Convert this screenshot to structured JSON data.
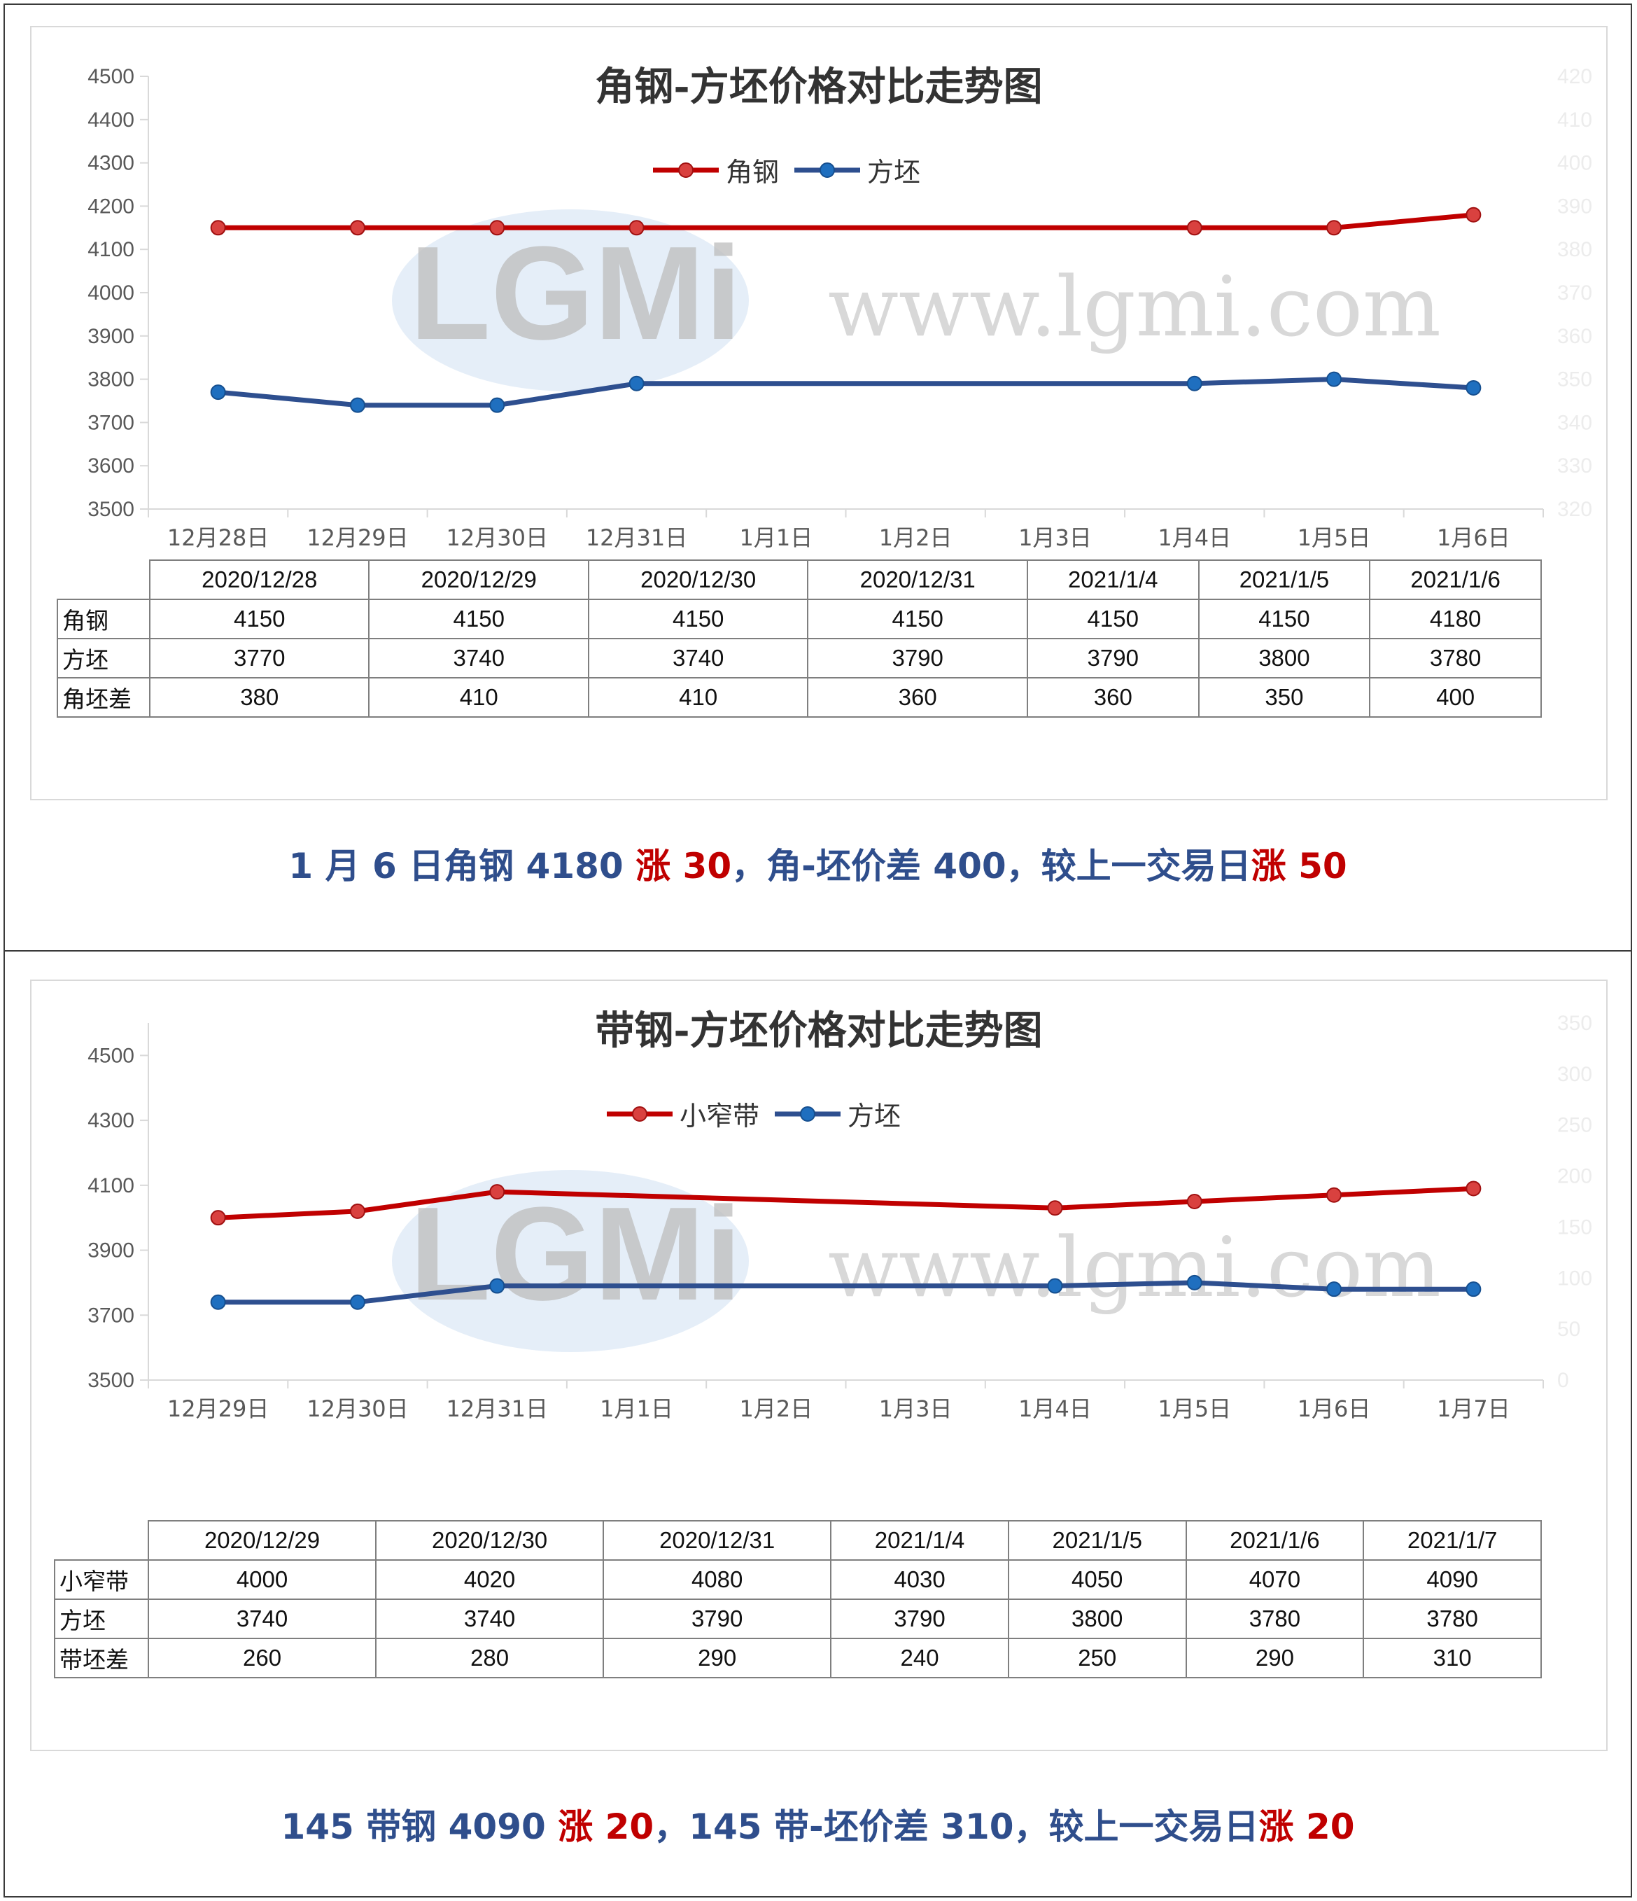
{
  "colors": {
    "red": "#c00000",
    "red_marker": "#d9413f",
    "blue": "#2e4f8f",
    "blue_marker": "#1f6fbf",
    "caption_blue": "#2f4e8c"
  },
  "panels": [
    {
      "watermark": {
        "logo": "LGMi",
        "url": "www.lgmi.com"
      },
      "chart_data": {
        "type": "line",
        "title": "角钢-方坯价格对比走势图",
        "categories": [
          "12月28日",
          "12月29日",
          "12月30日",
          "12月31日",
          "1月1日",
          "1月2日",
          "1月3日",
          "1月4日",
          "1月5日",
          "1月6日"
        ],
        "series": [
          {
            "name": "角钢",
            "color": "#c00000",
            "values": [
              4150,
              4150,
              4150,
              4150,
              null,
              null,
              null,
              4150,
              4150,
              4180
            ]
          },
          {
            "name": "方坯",
            "color": "#2e4f8f",
            "values": [
              3770,
              3740,
              3740,
              3790,
              null,
              null,
              null,
              3790,
              3800,
              3780
            ]
          }
        ],
        "ylim": [
          3500,
          4500
        ],
        "yticks": [
          3500,
          3600,
          3700,
          3800,
          3900,
          4000,
          4100,
          4200,
          4300,
          4400,
          4500
        ],
        "y2ticks": [
          "320",
          "330",
          "340",
          "350",
          "360",
          "370",
          "380",
          "390",
          "400",
          "410",
          "420"
        ],
        "hidden_series_label": "角坯差",
        "grid": false,
        "legend": "top-center"
      },
      "table": {
        "headers": [
          "2020/12/28",
          "2020/12/29",
          "2020/12/30",
          "2020/12/31",
          "2021/1/4",
          "2021/1/5",
          "2021/1/6"
        ],
        "rows": [
          {
            "label": "角钢",
            "values": [
              "4150",
              "4150",
              "4150",
              "4150",
              "4150",
              "4150",
              "4180"
            ]
          },
          {
            "label": "方坯",
            "values": [
              "3770",
              "3740",
              "3740",
              "3790",
              "3790",
              "3800",
              "3780"
            ]
          },
          {
            "label": "角坯差",
            "values": [
              "380",
              "410",
              "410",
              "360",
              "360",
              "350",
              "400"
            ]
          }
        ]
      },
      "caption": [
        {
          "text": "1 月 6 日角钢 4180 ",
          "hl": false
        },
        {
          "text": "涨 30",
          "hl": true
        },
        {
          "text": "，角-坯价差 400，较上一交易日",
          "hl": false
        },
        {
          "text": "涨 50",
          "hl": true
        }
      ]
    },
    {
      "watermark": {
        "logo": "LGMi",
        "url": "www.lgmi.com"
      },
      "chart_data": {
        "type": "line",
        "title": "带钢-方坯价格对比走势图",
        "categories": [
          "12月29日",
          "12月30日",
          "12月31日",
          "1月1日",
          "1月2日",
          "1月3日",
          "1月4日",
          "1月5日",
          "1月6日",
          "1月7日"
        ],
        "series": [
          {
            "name": "小窄带",
            "color": "#c00000",
            "values": [
              4000,
              4020,
              4080,
              null,
              null,
              null,
              4030,
              4050,
              4070,
              4090
            ]
          },
          {
            "name": "方坯",
            "color": "#2e4f8f",
            "values": [
              3740,
              3740,
              3790,
              null,
              null,
              null,
              3790,
              3800,
              3780,
              3780
            ]
          }
        ],
        "ylim": [
          3500,
          4600
        ],
        "yticks": [
          3500,
          3700,
          3900,
          4100,
          4300,
          4500
        ],
        "y2ticks": [
          "0",
          "50",
          "100",
          "150",
          "200",
          "250",
          "300",
          "350"
        ],
        "hidden_series_label": "带坯差",
        "grid": false,
        "legend": "top-center"
      },
      "table": {
        "headers": [
          "2020/12/29",
          "2020/12/30",
          "2020/12/31",
          "2021/1/4",
          "2021/1/5",
          "2021/1/6",
          "2021/1/7"
        ],
        "rows": [
          {
            "label": "小窄带",
            "values": [
              "4000",
              "4020",
              "4080",
              "4030",
              "4050",
              "4070",
              "4090"
            ]
          },
          {
            "label": "方坯",
            "values": [
              "3740",
              "3740",
              "3790",
              "3790",
              "3800",
              "3780",
              "3780"
            ]
          },
          {
            "label": "带坯差",
            "values": [
              "260",
              "280",
              "290",
              "240",
              "250",
              "290",
              "310"
            ]
          }
        ]
      },
      "caption": [
        {
          "text": "145 带钢 4090 ",
          "hl": false
        },
        {
          "text": "涨 20",
          "hl": true
        },
        {
          "text": "，145 带-坯价差 310，较上一交易日",
          "hl": false
        },
        {
          "text": "涨 20",
          "hl": true
        }
      ]
    }
  ]
}
